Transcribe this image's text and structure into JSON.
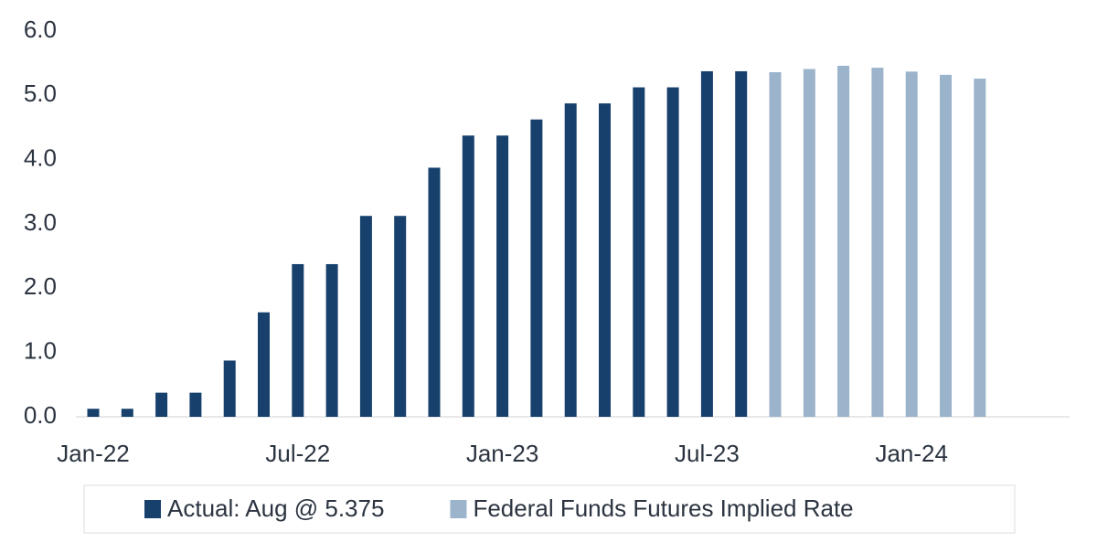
{
  "chart_data": {
    "type": "bar",
    "categories": [
      "Jan-22",
      null,
      null,
      null,
      null,
      null,
      "Jul-22",
      null,
      null,
      null,
      null,
      null,
      "Jan-23",
      null,
      null,
      null,
      null,
      null,
      "Jul-23",
      null,
      null,
      null,
      null,
      null,
      "Jan-24",
      null,
      null
    ],
    "series": [
      {
        "name": "Actual: Aug @ 5.375",
        "color": "#17406d",
        "values": [
          0.125,
          0.125,
          0.375,
          0.375,
          0.875,
          1.625,
          2.375,
          2.375,
          3.125,
          3.125,
          3.875,
          4.375,
          4.375,
          4.625,
          4.875,
          4.875,
          5.125,
          5.125,
          5.375,
          5.375,
          null,
          null,
          null,
          null,
          null,
          null,
          null
        ]
      },
      {
        "name": "Federal Funds Futures Implied Rate",
        "color": "#9bb3cb",
        "values": [
          null,
          null,
          null,
          null,
          null,
          null,
          null,
          null,
          null,
          null,
          null,
          null,
          null,
          null,
          null,
          null,
          null,
          null,
          null,
          null,
          5.36,
          5.41,
          5.46,
          5.43,
          5.37,
          5.32,
          5.26
        ]
      }
    ],
    "ylim": [
      0,
      6
    ],
    "yticks": [
      {
        "value": 0,
        "label": "0.0"
      },
      {
        "value": 1,
        "label": "1.0"
      },
      {
        "value": 2,
        "label": "2.0"
      },
      {
        "value": 3,
        "label": "3.0"
      },
      {
        "value": 4,
        "label": "4.0"
      },
      {
        "value": 5,
        "label": "5.0"
      },
      {
        "value": 6,
        "label": "6.0"
      }
    ],
    "legend": "bottom"
  }
}
